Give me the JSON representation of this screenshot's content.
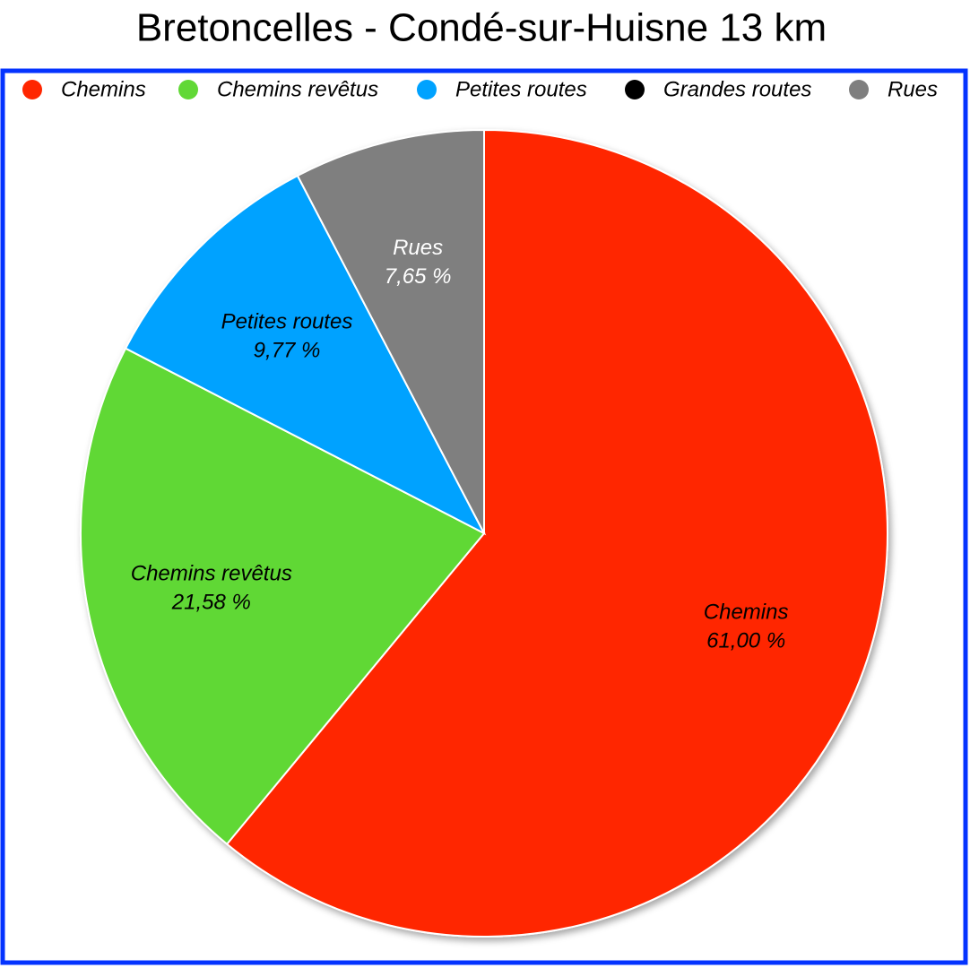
{
  "chart_data": {
    "type": "pie",
    "title": "Bretoncelles - Condé-sur-Huisne 13 km",
    "categories": [
      "Chemins",
      "Chemins revêtus",
      "Petites routes",
      "Grandes routes",
      "Rues"
    ],
    "values": [
      61.0,
      21.58,
      9.77,
      0,
      7.65
    ],
    "value_labels": [
      "61,00 %",
      "21,58 %",
      "9,77 %",
      null,
      "7,65 %"
    ],
    "colors": [
      "#ff2600",
      "#61d836",
      "#00a2ff",
      "#000000",
      "#7f7f7f"
    ],
    "legend": "top"
  }
}
